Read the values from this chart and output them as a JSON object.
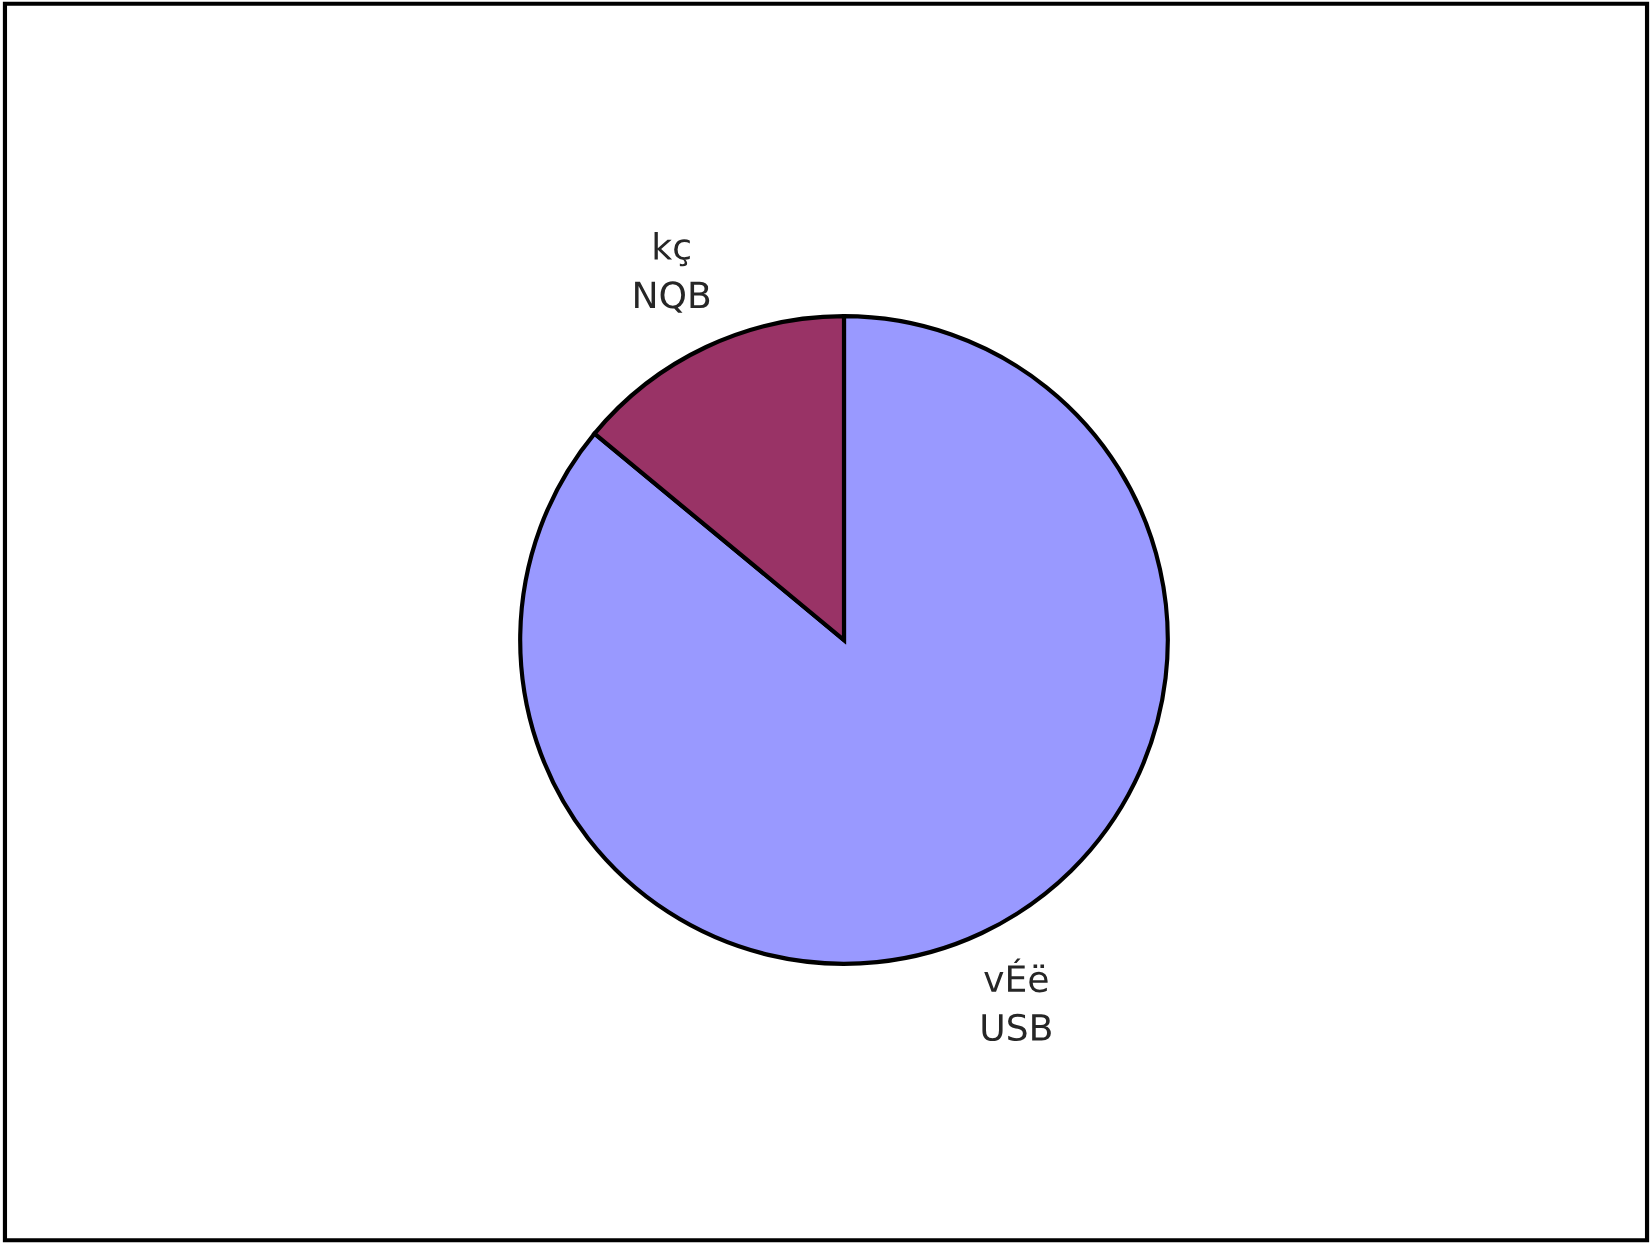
{
  "chart_data": {
    "type": "pie",
    "categories": [
      "vÉë",
      "kç"
    ],
    "values": [
      86,
      14
    ],
    "colors": [
      "#9999ff",
      "#993366"
    ],
    "value_labels": [
      "USB",
      "NQB"
    ]
  }
}
